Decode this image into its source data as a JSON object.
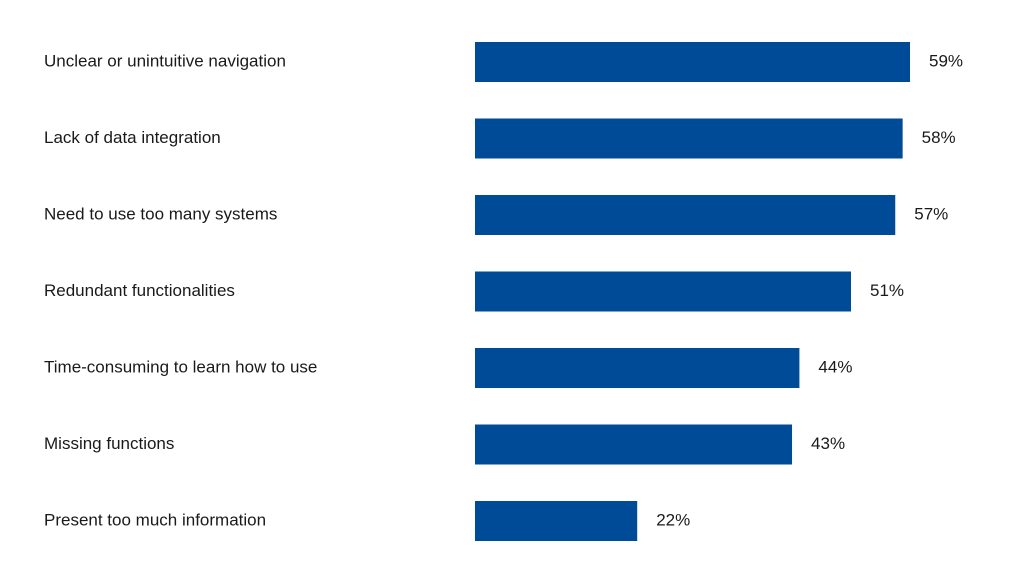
{
  "chart_data": {
    "type": "bar",
    "orientation": "horizontal",
    "categories": [
      "Unclear or unintuitive navigation",
      "Lack of data integration",
      "Need to use too many systems",
      "Redundant functionalities",
      "Time-consuming to learn how to use",
      "Missing functions",
      "Present too much information"
    ],
    "values": [
      59,
      58,
      57,
      51,
      44,
      43,
      22
    ],
    "value_labels": [
      "59%",
      "58%",
      "57%",
      "51%",
      "44%",
      "43%",
      "22%"
    ],
    "title": "",
    "xlabel": "",
    "ylabel": "",
    "xlim": [
      0,
      59
    ],
    "grid": false,
    "legend": "none",
    "bar_color": "#004b97"
  }
}
